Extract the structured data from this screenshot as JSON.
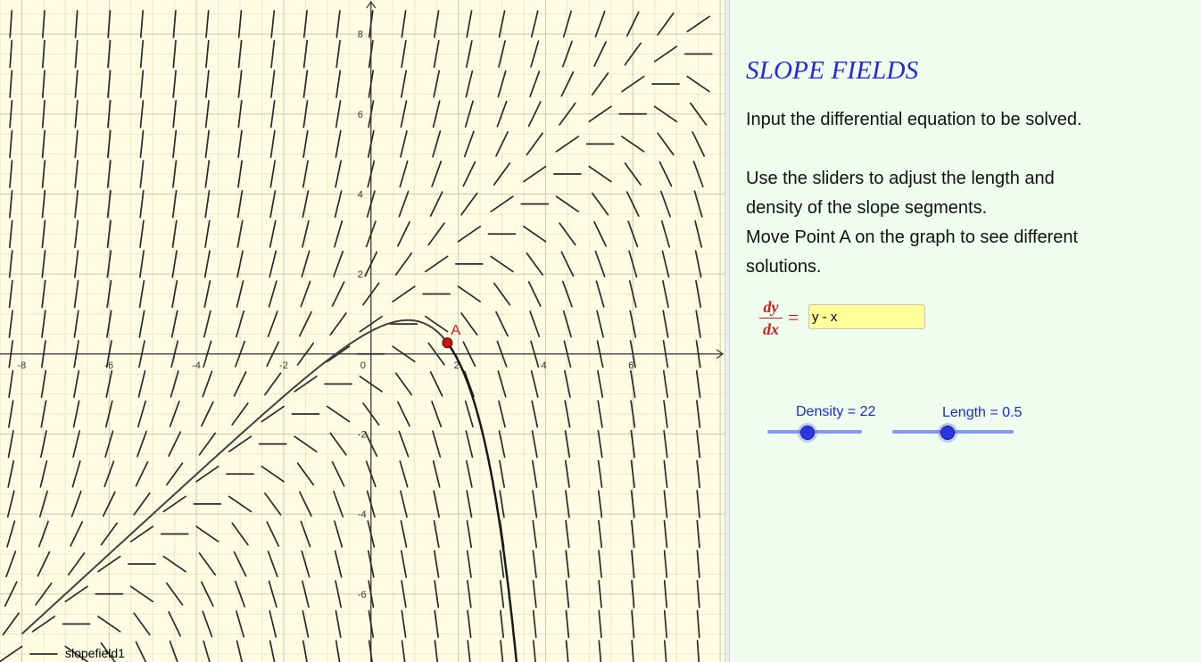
{
  "graph": {
    "background": "#fdfde3",
    "grid_minor_color": "#e8e8c8",
    "grid_major_color": "#c9c9b0",
    "view": {
      "xmin": -8.5,
      "xmax": 8.1,
      "ymin": -7.7,
      "ymax": 8.85
    },
    "x_tick_labels": [
      "-8",
      "-6",
      "-4",
      "-2",
      "0",
      "2",
      "4",
      "6"
    ],
    "y_tick_labels": [
      "8",
      "6",
      "4",
      "2",
      "-2",
      "-4",
      "-6"
    ],
    "point": {
      "label": "A",
      "x": 1.75,
      "y": 0.28,
      "color": "#cc1111"
    },
    "slopefield_label": "slopefield1",
    "curve_color": "#404040"
  },
  "panel": {
    "title": "SLOPE FIELDS",
    "instructions": [
      "Input the differential equation to be solved.",
      "Use the sliders to adjust the length and density of the slope segments.",
      "Move Point A on the graph to see different solutions."
    ],
    "derivative_numerator": "dy",
    "derivative_denominator": "dx",
    "equals": "=",
    "equation_value": "y - x",
    "sliders": {
      "density": {
        "label": "Density = 22",
        "value": 22,
        "min": 10,
        "max": 40
      },
      "length": {
        "label": "Length = 0.5",
        "value": 0.5,
        "min": 0.1,
        "max": 1.0
      }
    }
  }
}
